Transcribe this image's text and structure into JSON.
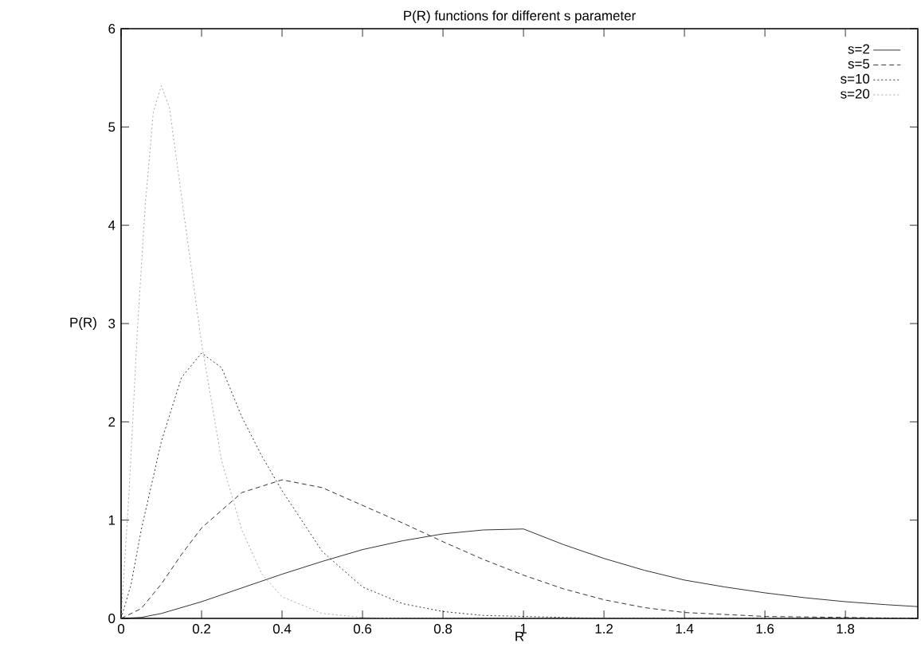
{
  "chart_data": {
    "type": "line",
    "title": "P(R) functions for different s parameter",
    "xlabel": "R",
    "ylabel": "P(R)",
    "xlim": [
      0,
      1.98
    ],
    "ylim": [
      0,
      6
    ],
    "xticks": [
      0,
      0.2,
      0.4,
      0.6,
      0.8,
      1,
      1.2,
      1.4,
      1.6,
      1.8
    ],
    "yticks": [
      0,
      1,
      2,
      3,
      4,
      5,
      6
    ],
    "grid": false,
    "legend": "top right",
    "marker": "none",
    "series": [
      {
        "name": "s=2",
        "color": "#000000",
        "line_style": "solid",
        "x": [
          0,
          0.05,
          0.1,
          0.2,
          0.3,
          0.4,
          0.5,
          0.6,
          0.7,
          0.8,
          0.9,
          1.0,
          1.1,
          1.2,
          1.3,
          1.4,
          1.5,
          1.6,
          1.7,
          1.8,
          1.9,
          1.98
        ],
        "values": [
          0,
          0.01,
          0.05,
          0.17,
          0.31,
          0.45,
          0.58,
          0.7,
          0.79,
          0.86,
          0.9,
          0.91,
          0.75,
          0.61,
          0.49,
          0.39,
          0.32,
          0.26,
          0.21,
          0.17,
          0.14,
          0.12
        ]
      },
      {
        "name": "s=5",
        "color": "#000000",
        "line_style": "dashed",
        "x": [
          0,
          0.05,
          0.1,
          0.15,
          0.2,
          0.3,
          0.4,
          0.5,
          0.6,
          0.7,
          0.8,
          0.9,
          1.0,
          1.1,
          1.2,
          1.3,
          1.4,
          1.6,
          1.8,
          1.98
        ],
        "values": [
          0,
          0.1,
          0.35,
          0.65,
          0.92,
          1.28,
          1.41,
          1.33,
          1.15,
          0.97,
          0.78,
          0.6,
          0.44,
          0.3,
          0.19,
          0.11,
          0.06,
          0.02,
          0.01,
          0
        ]
      },
      {
        "name": "s=10",
        "color": "#000000",
        "line_style": "dotted",
        "x": [
          0,
          0.025,
          0.05,
          0.075,
          0.1,
          0.15,
          0.2,
          0.25,
          0.3,
          0.35,
          0.4,
          0.5,
          0.6,
          0.7,
          0.8,
          0.9,
          1.0,
          1.2,
          1.98
        ],
        "values": [
          0,
          0.35,
          0.9,
          1.35,
          1.8,
          2.45,
          2.7,
          2.55,
          2.05,
          1.65,
          1.3,
          0.68,
          0.32,
          0.15,
          0.07,
          0.03,
          0.02,
          0,
          0
        ]
      },
      {
        "name": "s=20",
        "color": "#909090",
        "line_style": "dotted",
        "x": [
          0,
          0.02,
          0.04,
          0.06,
          0.08,
          0.1,
          0.12,
          0.14,
          0.16,
          0.18,
          0.2,
          0.25,
          0.3,
          0.35,
          0.4,
          0.5,
          0.6,
          0.7,
          1.98
        ],
        "values": [
          0,
          1.3,
          2.9,
          4.2,
          5.15,
          5.42,
          5.2,
          4.6,
          4.0,
          3.4,
          2.8,
          1.6,
          0.9,
          0.45,
          0.22,
          0.05,
          0.01,
          0,
          0
        ]
      }
    ]
  }
}
